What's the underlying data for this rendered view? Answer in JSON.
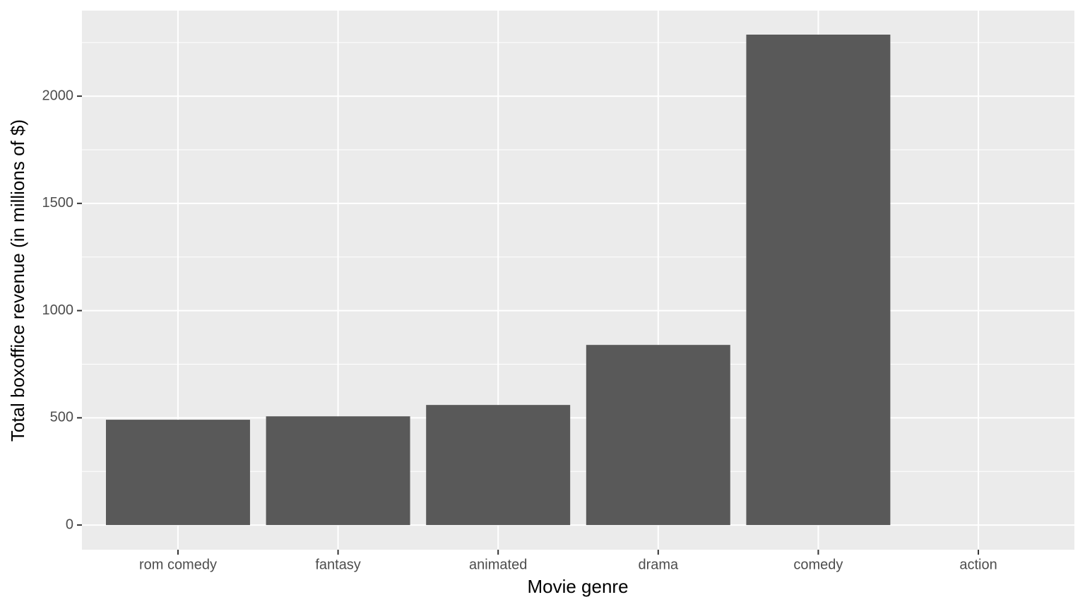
{
  "chart_data": {
    "type": "bar",
    "x_label": "Movie genre",
    "y_label": "Total boxoffice revenue (in millions of $)",
    "categories": [
      "rom comedy",
      "fantasy",
      "animated",
      "drama",
      "comedy",
      "action"
    ],
    "values": [
      491,
      507,
      560,
      840,
      2287,
      null
    ],
    "color": "#595959",
    "ylim": [
      -115,
      2399
    ],
    "yticks": [
      0,
      500,
      1000,
      1500,
      2000
    ],
    "minor_yticks": [
      250,
      750,
      1250,
      1750,
      2250
    ],
    "grid": true
  }
}
